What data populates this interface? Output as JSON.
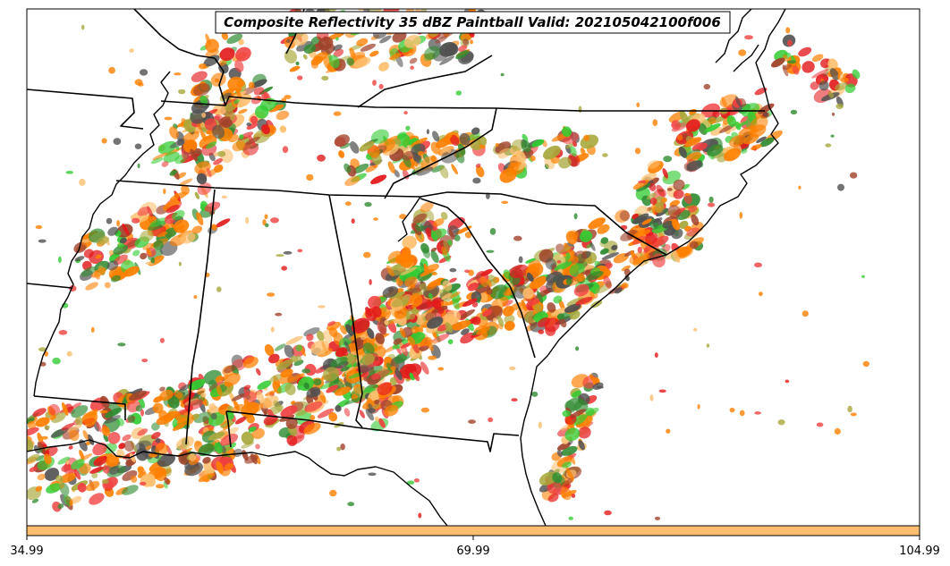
{
  "title": "Composite Reflectivity 35 dBZ Paintball Valid: 202105042100f006",
  "colorbar": {
    "color": "#fdbf6f",
    "ticks": [
      "34.99",
      "69.99",
      "104.99"
    ]
  },
  "palette": {
    "orange": "#ff7f00",
    "red": "#e31a1c",
    "light_orange": "#fdbf6f",
    "green": "#33cc33",
    "dark_green": "#2e8b30",
    "olive": "#a8a83c",
    "brown": "#a0422a",
    "gray": "#505050",
    "pink_red": "#f04040"
  },
  "map": {
    "region": "Southeastern United States",
    "lines": [
      "coastlines",
      "state-borders"
    ]
  }
}
